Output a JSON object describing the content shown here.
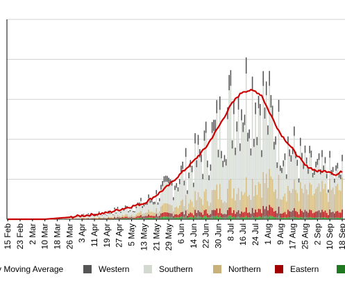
{
  "chart_data": {
    "type": "bar",
    "stacked": true,
    "xlabel": "",
    "ylabel": "",
    "ylim": [
      0,
      5
    ],
    "grid": "horizontal",
    "legend_placement": "bottom",
    "tick_labels": [
      "15 Feb",
      "23 Feb",
      "2 Mar",
      "10 Mar",
      "18 Mar",
      "26 Mar",
      "3 Apr",
      "11 Apr",
      "19 Apr",
      "27 Apr",
      "5 May",
      "13 May",
      "21 May",
      "29 May",
      "6 Jun",
      "14 Jun",
      "22 Jun",
      "30 Jun",
      "8 Jul",
      "16 Jul",
      "24 Jul",
      "1 Aug",
      "9 Aug",
      "17 Aug",
      "25 Aug",
      "2 Sep",
      "10 Sep",
      "18 Sep"
    ],
    "legend": [
      {
        "label": "y Moving Average",
        "color": "#cc0000",
        "kind": "line"
      },
      {
        "label": "Western",
        "color": "#555555",
        "kind": "box"
      },
      {
        "label": "Southern",
        "color": "#d3d9d1",
        "kind": "box"
      },
      {
        "label": "Northern",
        "color": "#c9b27a",
        "kind": "box"
      },
      {
        "label": "Eastern",
        "color": "#a00000",
        "kind": "box"
      },
      {
        "label": "",
        "color": "#1f7a1f",
        "kind": "box"
      }
    ],
    "series_order": [
      "Green",
      "Eastern",
      "Northern",
      "Southern",
      "Western"
    ],
    "series_colors": {
      "Green": "#1f7a1f",
      "Eastern": "#a00000",
      "Northern": "#c9b27a",
      "Southern": "#d3d9d1",
      "Western": "#555555",
      "Average": "#cc0000"
    },
    "moving_average_keypoints": [
      {
        "date": "15 Feb",
        "value": 0
      },
      {
        "date": "10 Mar",
        "value": 0
      },
      {
        "date": "26 Mar",
        "value": 0.05
      },
      {
        "date": "3 Apr",
        "value": 0.09
      },
      {
        "date": "11 Apr",
        "value": 0.12
      },
      {
        "date": "19 Apr",
        "value": 0.16
      },
      {
        "date": "27 Apr",
        "value": 0.24
      },
      {
        "date": "5 May",
        "value": 0.32
      },
      {
        "date": "13 May",
        "value": 0.4
      },
      {
        "date": "21 May",
        "value": 0.6
      },
      {
        "date": "29 May",
        "value": 0.85
      },
      {
        "date": "6 Jun",
        "value": 1.15
      },
      {
        "date": "14 Jun",
        "value": 1.45
      },
      {
        "date": "22 Jun",
        "value": 1.8
      },
      {
        "date": "30 Jun",
        "value": 2.3
      },
      {
        "date": "8 Jul",
        "value": 2.85
      },
      {
        "date": "12 Jul",
        "value": 3.05
      },
      {
        "date": "16 Jul",
        "value": 3.2
      },
      {
        "date": "20 Jul",
        "value": 3.22
      },
      {
        "date": "24 Jul",
        "value": 3.2
      },
      {
        "date": "28 Jul",
        "value": 3.1
      },
      {
        "date": "1 Aug",
        "value": 2.75
      },
      {
        "date": "9 Aug",
        "value": 2.15
      },
      {
        "date": "17 Aug",
        "value": 1.75
      },
      {
        "date": "25 Aug",
        "value": 1.35
      },
      {
        "date": "2 Sep",
        "value": 1.2
      },
      {
        "date": "10 Sep",
        "value": 1.2
      },
      {
        "date": "14 Sep",
        "value": 1.1
      },
      {
        "date": "18 Sep",
        "value": 1.2
      }
    ],
    "stack_fraction_keypoints": [
      {
        "date": "15 Feb",
        "green": 0.0,
        "eastern": 0.05,
        "northern": 0.1,
        "western": 0.15
      },
      {
        "date": "3 Apr",
        "green": 0.05,
        "eastern": 0.1,
        "northern": 0.15,
        "western": 0.15
      },
      {
        "date": "13 May",
        "green": 0.08,
        "eastern": 0.12,
        "northern": 0.2,
        "western": 0.15
      },
      {
        "date": "14 Jun",
        "green": 0.04,
        "eastern": 0.07,
        "northern": 0.22,
        "western": 0.12
      },
      {
        "date": "16 Jul",
        "green": 0.02,
        "eastern": 0.05,
        "northern": 0.18,
        "western": 0.1
      },
      {
        "date": "17 Aug",
        "green": 0.03,
        "eastern": 0.09,
        "northern": 0.3,
        "western": 0.1
      },
      {
        "date": "18 Sep",
        "green": 0.03,
        "eastern": 0.12,
        "northern": 0.5,
        "western": 0.1
      }
    ]
  }
}
